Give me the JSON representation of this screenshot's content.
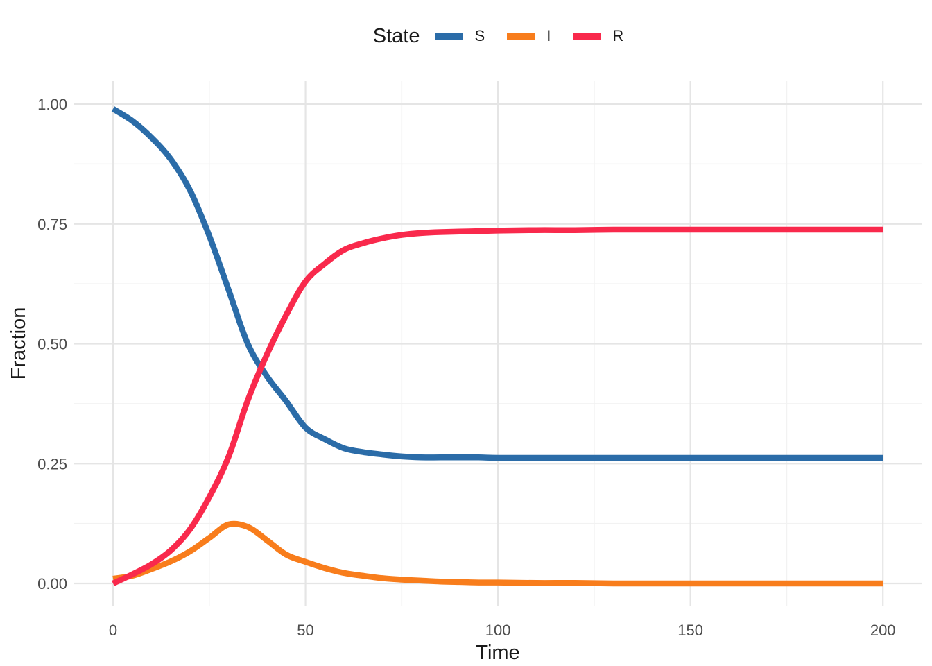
{
  "legend": {
    "title": "State",
    "entries": [
      "S",
      "I",
      "R"
    ]
  },
  "colors": {
    "background": "#ffffff",
    "grid_major": "#e5e5e5",
    "grid_minor": "#f2f2f2",
    "tick_label": "#4d4d4d",
    "axis_title": "#1a1a1a",
    "series_s": "#2b6ca8",
    "series_i": "#f87d1c",
    "series_r": "#f9294c"
  },
  "chart_data": {
    "type": "line",
    "title": "",
    "xlabel": "Time",
    "ylabel": "Fraction",
    "xlim": [
      0,
      200
    ],
    "ylim": [
      0,
      1
    ],
    "grid": true,
    "legend_title": "State",
    "legend_position": "top-center",
    "x_ticks": [
      0,
      50,
      100,
      150,
      200
    ],
    "x_tick_labels": [
      "0",
      "50",
      "100",
      "150",
      "200"
    ],
    "x_minor_ticks": [
      25,
      75,
      125,
      175
    ],
    "y_ticks": [
      0,
      0.25,
      0.5,
      0.75,
      1.0
    ],
    "y_tick_labels": [
      "0.00",
      "0.25",
      "0.50",
      "0.75",
      "1.00"
    ],
    "y_minor_ticks": [
      0.125,
      0.375,
      0.625,
      0.875
    ],
    "x": [
      0,
      5,
      10,
      15,
      20,
      25,
      30,
      35,
      40,
      45,
      50,
      55,
      60,
      65,
      70,
      75,
      80,
      85,
      90,
      95,
      100,
      110,
      120,
      130,
      140,
      150,
      160,
      170,
      180,
      190,
      200
    ],
    "series": [
      {
        "name": "S",
        "color": "#2b6ca8",
        "values": [
          0.99,
          0.965,
          0.93,
          0.885,
          0.82,
          0.725,
          0.613,
          0.5,
          0.432,
          0.38,
          0.325,
          0.301,
          0.282,
          0.274,
          0.269,
          0.265,
          0.263,
          0.263,
          0.263,
          0.263,
          0.262,
          0.262,
          0.262,
          0.262,
          0.262,
          0.262,
          0.262,
          0.262,
          0.262,
          0.262,
          0.262
        ]
      },
      {
        "name": "I",
        "color": "#f87d1c",
        "values": [
          0.01,
          0.016,
          0.03,
          0.046,
          0.067,
          0.095,
          0.123,
          0.118,
          0.09,
          0.06,
          0.045,
          0.032,
          0.022,
          0.016,
          0.011,
          0.008,
          0.006,
          0.004,
          0.003,
          0.002,
          0.002,
          0.001,
          0.001,
          0.0,
          0.0,
          0.0,
          0.0,
          0.0,
          0.0,
          0.0,
          0.0
        ]
      },
      {
        "name": "R",
        "color": "#f9294c",
        "values": [
          0.0,
          0.019,
          0.04,
          0.069,
          0.113,
          0.18,
          0.264,
          0.382,
          0.478,
          0.56,
          0.63,
          0.667,
          0.696,
          0.71,
          0.72,
          0.727,
          0.731,
          0.733,
          0.734,
          0.735,
          0.736,
          0.737,
          0.737,
          0.738,
          0.738,
          0.738,
          0.738,
          0.738,
          0.738,
          0.738,
          0.738
        ]
      }
    ]
  }
}
